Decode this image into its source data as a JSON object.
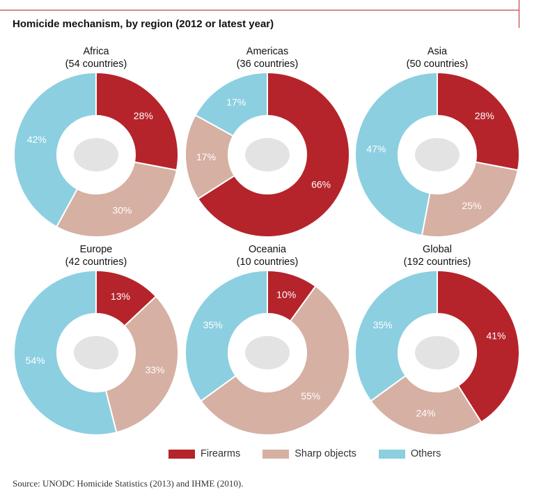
{
  "title": "Homicide mechanism, by region (2012 or latest year)",
  "colors": {
    "firearms": "#b5242b",
    "sharp": "#d5b0a3",
    "others": "#8ccfe1"
  },
  "legend": [
    "Firearms",
    "Sharp objects",
    "Others"
  ],
  "source": "Source: UNODC Homicide Statistics (2013) and IHME (2010).",
  "chart_data": [
    {
      "type": "pie",
      "title": "Africa",
      "subtitle": "(54 countries)",
      "categories": [
        "Firearms",
        "Sharp objects",
        "Others"
      ],
      "values": [
        28,
        30,
        42
      ],
      "labels": [
        "28%",
        "30%",
        "42%"
      ]
    },
    {
      "type": "pie",
      "title": "Americas",
      "subtitle": "(36 countries)",
      "categories": [
        "Firearms",
        "Sharp objects",
        "Others"
      ],
      "values": [
        66,
        17,
        17
      ],
      "labels": [
        "66%",
        "17%",
        "17%"
      ]
    },
    {
      "type": "pie",
      "title": "Asia",
      "subtitle": "(50 countries)",
      "categories": [
        "Firearms",
        "Sharp objects",
        "Others"
      ],
      "values": [
        28,
        25,
        47
      ],
      "labels": [
        "28%",
        "25%",
        "47%"
      ]
    },
    {
      "type": "pie",
      "title": "Europe",
      "subtitle": "(42 countries)",
      "categories": [
        "Firearms",
        "Sharp objects",
        "Others"
      ],
      "values": [
        13,
        33,
        54
      ],
      "labels": [
        "13%",
        "33%",
        "54%"
      ]
    },
    {
      "type": "pie",
      "title": "Oceania",
      "subtitle": "(10 countries)",
      "categories": [
        "Firearms",
        "Sharp objects",
        "Others"
      ],
      "values": [
        10,
        55,
        35
      ],
      "labels": [
        "10%",
        "55%",
        "35%"
      ]
    },
    {
      "type": "pie",
      "title": "Global",
      "subtitle": "(192 countries)",
      "categories": [
        "Firearms",
        "Sharp objects",
        "Others"
      ],
      "values": [
        41,
        24,
        35
      ],
      "labels": [
        "41%",
        "24%",
        "35%"
      ]
    }
  ]
}
